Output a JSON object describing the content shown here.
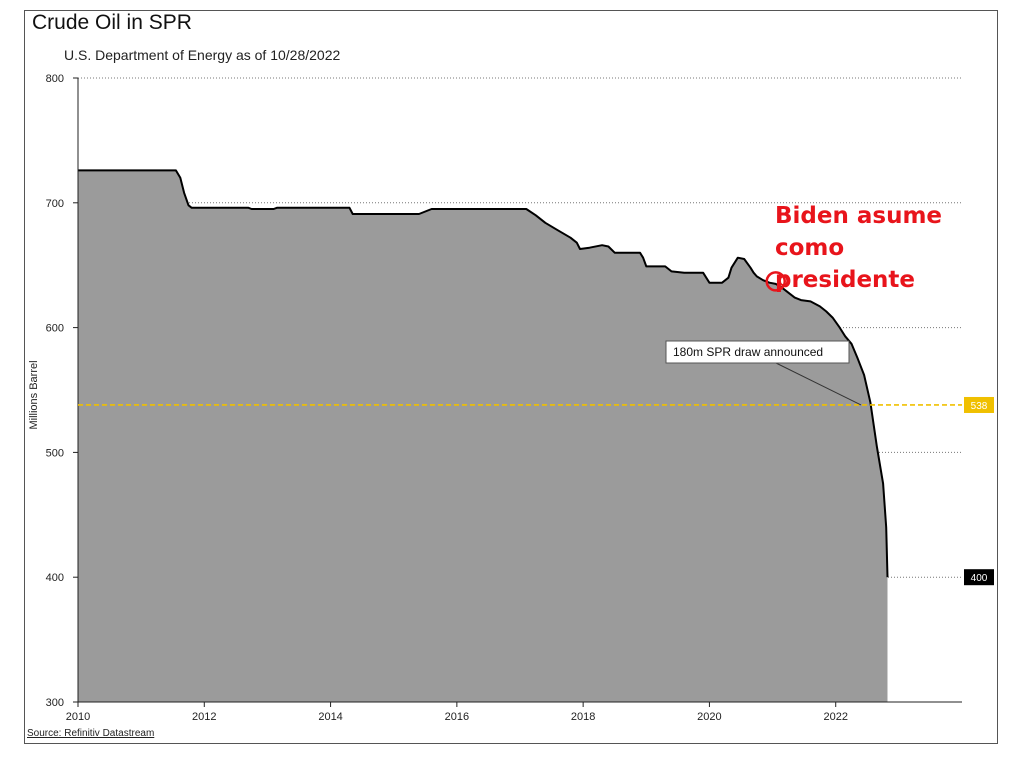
{
  "chart_data": {
    "type": "area",
    "title": "Crude Oil in SPR",
    "subtitle": "U.S. Department of Energy as of 10/28/2022",
    "ylabel": "Millions Barrel",
    "xlabel": "",
    "xlim": [
      2010,
      2024
    ],
    "ylim": [
      300,
      800
    ],
    "x_ticks": [
      2010,
      2012,
      2014,
      2016,
      2018,
      2020,
      2022
    ],
    "y_ticks": [
      300,
      400,
      500,
      600,
      700,
      800
    ],
    "grid": "horizontal dotted",
    "source": "Source: Refinitiv Datastream",
    "fill_color": "#9b9b9b",
    "line_color": "#000000",
    "reference_line": {
      "value": 538,
      "label": "538",
      "color": "#f0c000"
    },
    "end_label": {
      "value": 400,
      "label": "400"
    },
    "callout": {
      "text": "180m SPR draw announced",
      "x": 2022.4,
      "y": 538
    },
    "highlight": {
      "text": "Biden asume como presidente",
      "x": 2021.05,
      "y": 637,
      "color": "#e8141b"
    },
    "series": [
      {
        "x": [
          2010.0,
          2011.55,
          2011.62,
          2011.68,
          2011.75,
          2011.8,
          2012.0,
          2012.7,
          2012.75,
          2013.1,
          2013.15,
          2014.3,
          2014.35,
          2015.4,
          2015.5,
          2015.6,
          2016.5,
          2017.1,
          2017.25,
          2017.4,
          2017.6,
          2017.8,
          2017.9,
          2017.95,
          2018.1,
          2018.3,
          2018.4,
          2018.5,
          2018.9,
          2018.95,
          2019.0,
          2019.3,
          2019.4,
          2019.6,
          2019.9,
          2020.0,
          2020.2,
          2020.3,
          2020.35,
          2020.45,
          2020.55,
          2020.65,
          2020.7,
          2020.75,
          2020.85,
          2020.95,
          2021.05,
          2021.15,
          2021.25,
          2021.35,
          2021.45,
          2021.6,
          2021.75,
          2021.85,
          2021.95,
          2022.05,
          2022.15,
          2022.25,
          2022.35,
          2022.45,
          2022.55,
          2022.65,
          2022.75,
          2022.8,
          2022.82
        ],
        "y": [
          726,
          726,
          720,
          708,
          698,
          696,
          696,
          696,
          695,
          695,
          696,
          696,
          691,
          691,
          693,
          695,
          695,
          695,
          690,
          684,
          678,
          672,
          668,
          663,
          664,
          666,
          665,
          660,
          660,
          656,
          649,
          649,
          645,
          644,
          644,
          636,
          636,
          640,
          648,
          656,
          655,
          648,
          644,
          641,
          638,
          636,
          635,
          632,
          628,
          624,
          622,
          621,
          617,
          613,
          608,
          601,
          593,
          587,
          575,
          562,
          540,
          505,
          475,
          440,
          400
        ]
      }
    ]
  }
}
